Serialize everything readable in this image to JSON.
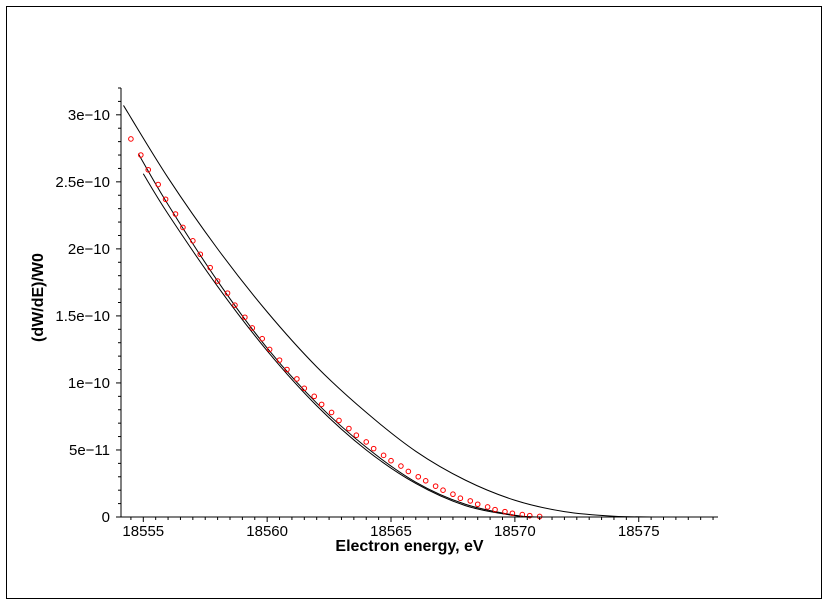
{
  "chart_data": {
    "type": "line",
    "title": "",
    "xlabel": "Electron energy, eV",
    "ylabel": "(dW/dE)/W0",
    "xlim": [
      18554.1,
      18578.2
    ],
    "ylim": [
      0,
      3.2e-10
    ],
    "x_ticks": [
      {
        "value": 18555,
        "label": "18555"
      },
      {
        "value": 18560,
        "label": "18560"
      },
      {
        "value": 18565,
        "label": "18565"
      },
      {
        "value": 18570,
        "label": "18570"
      },
      {
        "value": 18575,
        "label": "18575"
      }
    ],
    "y_ticks": [
      {
        "value": 0,
        "label": "0"
      },
      {
        "value": 5e-11,
        "label": "5e−11"
      },
      {
        "value": 1e-10,
        "label": "1e−10"
      },
      {
        "value": 1.5e-10,
        "label": "1.5e−10"
      },
      {
        "value": 2e-10,
        "label": "2e−10"
      },
      {
        "value": 2.5e-10,
        "label": "2.5e−10"
      },
      {
        "value": 3e-10,
        "label": "3e−10"
      }
    ],
    "grid": false,
    "legend": "none",
    "series": [
      {
        "style": "line",
        "color": "#000000",
        "x": [
          18554.2,
          18556,
          18558,
          18560,
          18562,
          18564,
          18566,
          18568,
          18570,
          18572,
          18574,
          18576,
          18577
        ],
        "values": [
          3.07e-10,
          2.53e-10,
          2e-10,
          1.53e-10,
          1.12e-10,
          7.8e-11,
          4.9e-11,
          2.75e-11,
          1.25e-11,
          4e-12,
          6e-13,
          0,
          0
        ]
      },
      {
        "style": "line",
        "color": "#000000",
        "x": [
          18554.8,
          18556,
          18558,
          18560,
          18562,
          18564,
          18566,
          18568,
          18570,
          18570.8
        ],
        "values": [
          2.71e-10,
          2.33e-10,
          1.76e-10,
          1.26e-10,
          8.5e-11,
          5.2e-11,
          2.6e-11,
          9.5e-12,
          1.3e-12,
          0
        ]
      },
      {
        "style": "line",
        "color": "#000000",
        "x": [
          18555.0,
          18556,
          18558,
          18560,
          18562,
          18564,
          18566,
          18568,
          18570,
          18571.2
        ],
        "values": [
          2.56e-10,
          2.26e-10,
          1.72e-10,
          1.24e-10,
          8.3e-11,
          5e-11,
          2.5e-11,
          8.5e-12,
          1e-12,
          0
        ]
      },
      {
        "style": "markers",
        "marker": "open-circle",
        "color": "#ff0000",
        "x": [
          18554.5,
          18554.9,
          18555.2,
          18555.6,
          18555.9,
          18556.3,
          18556.6,
          18557.0,
          18557.3,
          18557.7,
          18558.0,
          18558.4,
          18558.7,
          18559.1,
          18559.4,
          18559.8,
          18560.1,
          18560.5,
          18560.8,
          18561.2,
          18561.5,
          18561.9,
          18562.2,
          18562.6,
          18562.9,
          18563.3,
          18563.6,
          18564.0,
          18564.3,
          18564.7,
          18565.0,
          18565.4,
          18565.7,
          18566.1,
          18566.4,
          18566.8,
          18567.1,
          18567.5,
          18567.8,
          18568.2,
          18568.5,
          18568.9,
          18569.2,
          18569.6,
          18569.9,
          18570.3,
          18570.6,
          18571.0
        ],
        "values": [
          2.82e-10,
          2.7e-10,
          2.59e-10,
          2.48e-10,
          2.37e-10,
          2.26e-10,
          2.16e-10,
          2.06e-10,
          1.96e-10,
          1.86e-10,
          1.76e-10,
          1.67e-10,
          1.58e-10,
          1.49e-10,
          1.41e-10,
          1.33e-10,
          1.25e-10,
          1.17e-10,
          1.1e-10,
          1.03e-10,
          9.6e-11,
          9e-11,
          8.4e-11,
          7.8e-11,
          7.2e-11,
          6.6e-11,
          6.1e-11,
          5.6e-11,
          5.1e-11,
          4.6e-11,
          4.2e-11,
          3.8e-11,
          3.4e-11,
          3e-11,
          2.7e-11,
          2.3e-11,
          2e-11,
          1.7e-11,
          1.4e-11,
          1.2e-11,
          9.5e-12,
          7.5e-12,
          5.5e-12,
          4e-12,
          2.8e-12,
          1.8e-12,
          1e-12,
          4e-13
        ]
      }
    ]
  }
}
